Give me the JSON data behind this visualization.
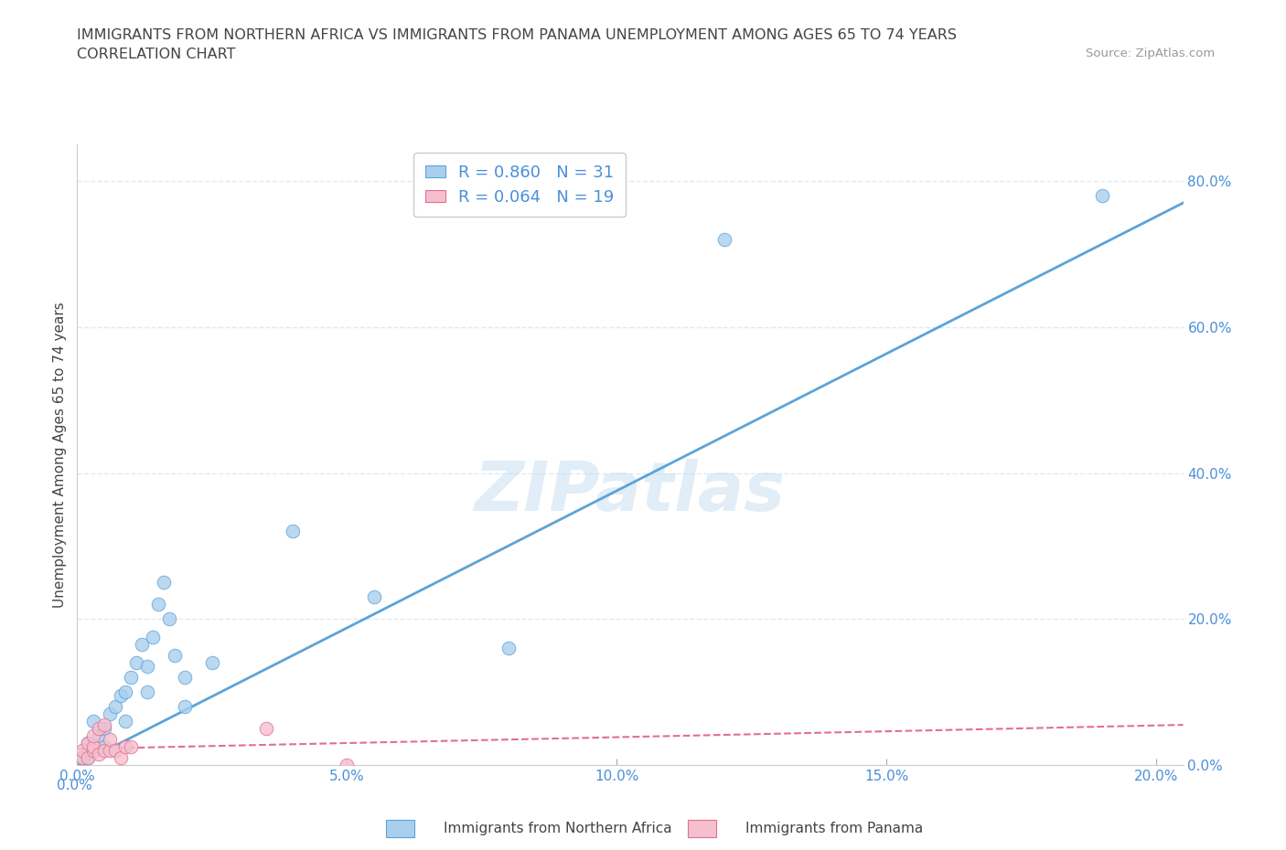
{
  "title_line1": "IMMIGRANTS FROM NORTHERN AFRICA VS IMMIGRANTS FROM PANAMA UNEMPLOYMENT AMONG AGES 65 TO 74 YEARS",
  "title_line2": "CORRELATION CHART",
  "source": "Source: ZipAtlas.com",
  "ylabel": "Unemployment Among Ages 65 to 74 years",
  "watermark": "ZIPatlas",
  "blue_R": 0.86,
  "blue_N": 31,
  "pink_R": 0.064,
  "pink_N": 19,
  "blue_color": "#aacfee",
  "pink_color": "#f5bfce",
  "blue_line_color": "#5ba3d9",
  "pink_line_color": "#e07090",
  "background_color": "#ffffff",
  "grid_color": "#ddeaf5",
  "axis_label_color": "#4a90d9",
  "title_color": "#444444",
  "xlim": [
    0.0,
    0.205
  ],
  "ylim": [
    0.0,
    0.85
  ],
  "blue_scatter_x": [
    0.001,
    0.002,
    0.002,
    0.003,
    0.003,
    0.004,
    0.005,
    0.005,
    0.006,
    0.007,
    0.008,
    0.009,
    0.009,
    0.01,
    0.011,
    0.012,
    0.013,
    0.013,
    0.014,
    0.015,
    0.016,
    0.017,
    0.018,
    0.02,
    0.02,
    0.025,
    0.04,
    0.055,
    0.08,
    0.12,
    0.19
  ],
  "blue_scatter_y": [
    0.01,
    0.01,
    0.03,
    0.02,
    0.06,
    0.04,
    0.05,
    0.025,
    0.07,
    0.08,
    0.095,
    0.1,
    0.06,
    0.12,
    0.14,
    0.165,
    0.135,
    0.1,
    0.175,
    0.22,
    0.25,
    0.2,
    0.15,
    0.12,
    0.08,
    0.14,
    0.32,
    0.23,
    0.16,
    0.72,
    0.78
  ],
  "pink_scatter_x": [
    0.001,
    0.001,
    0.002,
    0.002,
    0.003,
    0.003,
    0.003,
    0.004,
    0.004,
    0.005,
    0.005,
    0.006,
    0.006,
    0.007,
    0.008,
    0.009,
    0.01,
    0.035,
    0.05
  ],
  "pink_scatter_y": [
    0.01,
    0.02,
    0.01,
    0.03,
    0.02,
    0.025,
    0.04,
    0.015,
    0.05,
    0.02,
    0.055,
    0.02,
    0.035,
    0.02,
    0.01,
    0.025,
    0.025,
    0.05,
    0.0
  ],
  "yticks": [
    0.0,
    0.2,
    0.4,
    0.6,
    0.8
  ],
  "ytick_labels": [
    "0.0%",
    "20.0%",
    "40.0%",
    "60.0%",
    "80.0%"
  ],
  "xticks": [
    0.0,
    0.05,
    0.1,
    0.15,
    0.2
  ],
  "xtick_labels": [
    "0.0%",
    "5.0%",
    "10.0%",
    "15.0%",
    "20.0%"
  ],
  "blue_line_x": [
    0.0,
    0.205
  ],
  "blue_line_y": [
    0.0,
    0.77
  ],
  "pink_line_x": [
    0.0,
    0.205
  ],
  "pink_line_y": [
    0.022,
    0.055
  ]
}
